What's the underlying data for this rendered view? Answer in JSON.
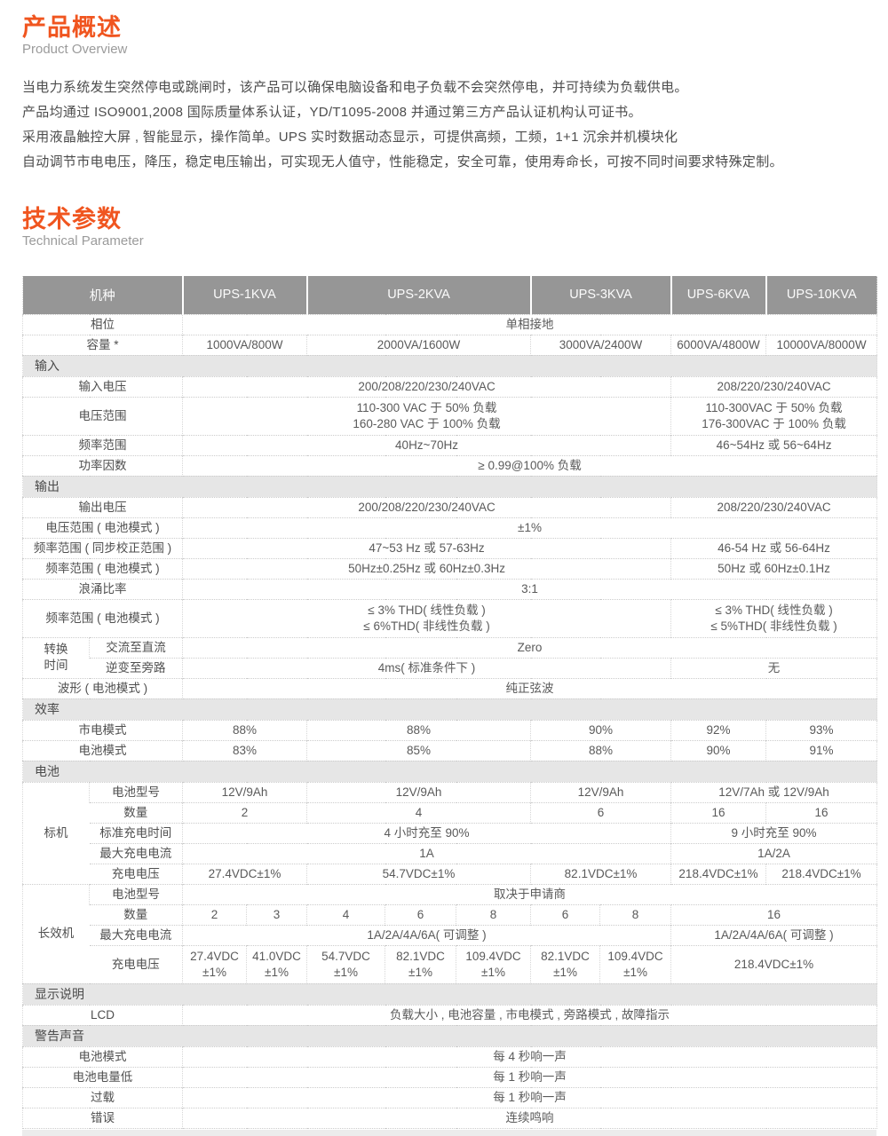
{
  "colors": {
    "accent": "#f0551f",
    "header_bg": "#969696",
    "section_bg": "#e6e6e6"
  },
  "overview": {
    "title": "产品概述",
    "subtitle": "Product Overview",
    "paragraphs": [
      "当电力系统发生突然停电或跳闸时，该产品可以确保电脑设备和电子负载不会突然停电，并可持续为负载供电。",
      "产品均通过 ISO9001,2008 国际质量体系认证，YD/T1095-2008 并通过第三方产品认证机构认可证书。",
      "采用液晶触控大屏 , 智能显示，操作简单。UPS 实时数据动态显示，可提供高频，工频，1+1 沉余并机模块化",
      "自动调节市电电压，降压，稳定电压输出，可实现无人值守，性能稳定，安全可靠，使用寿命长，可按不同时间要求特殊定制。"
    ]
  },
  "tech": {
    "title": "技术参数",
    "subtitle": "Technical Parameter"
  },
  "table": {
    "columns": [
      75,
      105,
      72,
      68,
      88,
      80,
      84,
      78,
      80,
      107,
      125
    ],
    "header": [
      {
        "t": "机种",
        "cs": 2
      },
      {
        "t": "UPS-1KVA",
        "cs": 2
      },
      {
        "t": "UPS-2KVA",
        "cs": 3
      },
      {
        "t": "UPS-3KVA",
        "cs": 2
      },
      {
        "t": "UPS-6KVA",
        "cs": 1
      },
      {
        "t": "UPS-10KVA",
        "cs": 1
      }
    ],
    "rows": [
      {
        "cells": [
          {
            "t": "相位",
            "cs": 2,
            "cls": "lab"
          },
          {
            "t": "单相接地",
            "cs": 9
          }
        ]
      },
      {
        "cells": [
          {
            "t": "容量 *",
            "cs": 2,
            "cls": "lab"
          },
          {
            "t": "1000VA/800W",
            "cs": 2
          },
          {
            "t": "2000VA/1600W",
            "cs": 3
          },
          {
            "t": "3000VA/2400W",
            "cs": 2
          },
          {
            "t": "6000VA/4800W"
          },
          {
            "t": "10000VA/8000W"
          }
        ]
      },
      {
        "section": "输入"
      },
      {
        "cells": [
          {
            "t": "输入电压",
            "cs": 2,
            "cls": "lab"
          },
          {
            "t": "200/208/220/230/240VAC",
            "cs": 7
          },
          {
            "t": "208/220/230/240VAC",
            "cs": 2
          }
        ]
      },
      {
        "cells": [
          {
            "t": "电压范围",
            "cs": 2,
            "cls": "lab"
          },
          {
            "t": [
              "110-300 VAC 于 50% 负载",
              "160-280 VAC 于 100% 负载"
            ],
            "cs": 7
          },
          {
            "t": [
              "110-300VAC 于 50% 负载",
              "176-300VAC 于 100% 负载"
            ],
            "cs": 2
          }
        ]
      },
      {
        "cells": [
          {
            "t": "频率范围",
            "cs": 2,
            "cls": "lab"
          },
          {
            "t": "40Hz~70Hz",
            "cs": 7
          },
          {
            "t": "46~54Hz 或 56~64Hz",
            "cs": 2
          }
        ]
      },
      {
        "cells": [
          {
            "t": "功率因数",
            "cs": 2,
            "cls": "lab"
          },
          {
            "t": "≥ 0.99@100% 负载",
            "cs": 9
          }
        ]
      },
      {
        "section": "输出"
      },
      {
        "cells": [
          {
            "t": "输出电压",
            "cs": 2,
            "cls": "lab"
          },
          {
            "t": "200/208/220/230/240VAC",
            "cs": 7
          },
          {
            "t": "208/220/230/240VAC",
            "cs": 2
          }
        ]
      },
      {
        "cells": [
          {
            "t": "电压范围 ( 电池模式 )",
            "cs": 2,
            "cls": "lab"
          },
          {
            "t": "±1%",
            "cs": 9
          }
        ]
      },
      {
        "cells": [
          {
            "t": "频率范围 ( 同步校正范围 )",
            "cs": 2,
            "cls": "lab"
          },
          {
            "t": "47~53 Hz 或 57-63Hz",
            "cs": 7
          },
          {
            "t": "46-54 Hz 或 56-64Hz",
            "cs": 2
          }
        ]
      },
      {
        "cells": [
          {
            "t": "频率范围 ( 电池模式 )",
            "cs": 2,
            "cls": "lab"
          },
          {
            "t": "50Hz±0.25Hz 或 60Hz±0.3Hz",
            "cs": 7
          },
          {
            "t": "50Hz 或 60Hz±0.1Hz",
            "cs": 2
          }
        ]
      },
      {
        "cells": [
          {
            "t": "浪涌比率",
            "cs": 2,
            "cls": "lab"
          },
          {
            "t": "3:1",
            "cs": 9
          }
        ]
      },
      {
        "cells": [
          {
            "t": "频率范围 ( 电池模式 )",
            "cs": 2,
            "cls": "lab"
          },
          {
            "t": [
              "≤ 3% THD( 线性负载 )",
              "≤ 6%THD( 非线性负载 )"
            ],
            "cs": 7
          },
          {
            "t": [
              "≤ 3% THD( 线性负载 )",
              "≤ 5%THD( 非线性负载 )"
            ],
            "cs": 2
          }
        ]
      },
      {
        "cells": [
          {
            "t": [
              "转换",
              "时间"
            ],
            "rs": 2,
            "cls": "lab"
          },
          {
            "t": "交流至直流",
            "cls": "lab"
          },
          {
            "t": "Zero",
            "cs": 9
          }
        ]
      },
      {
        "cells": [
          {
            "t": "逆变至旁路",
            "cls": "lab"
          },
          {
            "t": "4ms( 标准条件下 )",
            "cs": 7
          },
          {
            "t": "无",
            "cs": 2
          }
        ]
      },
      {
        "cells": [
          {
            "t": "波形 ( 电池模式 )",
            "cs": 2,
            "cls": "lab"
          },
          {
            "t": "纯正弦波",
            "cs": 9
          }
        ]
      },
      {
        "section": "效率"
      },
      {
        "cells": [
          {
            "t": "市电模式",
            "cs": 2,
            "cls": "lab"
          },
          {
            "t": "88%",
            "cs": 2
          },
          {
            "t": "88%",
            "cs": 3
          },
          {
            "t": "90%",
            "cs": 2
          },
          {
            "t": "92%"
          },
          {
            "t": "93%"
          }
        ]
      },
      {
        "cells": [
          {
            "t": "电池模式",
            "cs": 2,
            "cls": "lab"
          },
          {
            "t": "83%",
            "cs": 2
          },
          {
            "t": "85%",
            "cs": 3
          },
          {
            "t": "88%",
            "cs": 2
          },
          {
            "t": "90%"
          },
          {
            "t": "91%"
          }
        ]
      },
      {
        "section": "电池"
      },
      {
        "cells": [
          {
            "t": "标机",
            "rs": 5,
            "cls": "lab"
          },
          {
            "t": "电池型号",
            "cls": "lab"
          },
          {
            "t": "12V/9Ah",
            "cs": 2
          },
          {
            "t": "12V/9Ah",
            "cs": 3
          },
          {
            "t": "12V/9Ah",
            "cs": 2
          },
          {
            "t": "12V/7Ah 或 12V/9Ah",
            "cs": 2
          }
        ]
      },
      {
        "cells": [
          {
            "t": "数量",
            "cls": "lab"
          },
          {
            "t": "2",
            "cs": 2
          },
          {
            "t": "4",
            "cs": 3
          },
          {
            "t": "6",
            "cs": 2
          },
          {
            "t": "16"
          },
          {
            "t": "16"
          }
        ]
      },
      {
        "cells": [
          {
            "t": "标准充电时间",
            "cls": "lab"
          },
          {
            "t": "4 小时充至 90%",
            "cs": 7
          },
          {
            "t": "9 小时充至 90%",
            "cs": 2
          }
        ]
      },
      {
        "cells": [
          {
            "t": "最大充电电流",
            "cls": "lab"
          },
          {
            "t": "1A",
            "cs": 7
          },
          {
            "t": "1A/2A",
            "cs": 2
          }
        ]
      },
      {
        "cells": [
          {
            "t": "充电电压",
            "cls": "lab"
          },
          {
            "t": "27.4VDC±1%",
            "cs": 2
          },
          {
            "t": "54.7VDC±1%",
            "cs": 3
          },
          {
            "t": "82.1VDC±1%",
            "cs": 2
          },
          {
            "t": "218.4VDC±1%"
          },
          {
            "t": "218.4VDC±1%"
          }
        ]
      },
      {
        "cells": [
          {
            "t": "长效机",
            "rs": 4,
            "cls": "lab"
          },
          {
            "t": "电池型号",
            "cls": "lab"
          },
          {
            "t": "取决于申请商",
            "cs": 9
          }
        ]
      },
      {
        "cells": [
          {
            "t": "数量",
            "cls": "lab"
          },
          {
            "t": "2"
          },
          {
            "t": "3"
          },
          {
            "t": "4"
          },
          {
            "t": "6"
          },
          {
            "t": "8"
          },
          {
            "t": "6"
          },
          {
            "t": "8"
          },
          {
            "t": "16",
            "cs": 2
          }
        ]
      },
      {
        "cells": [
          {
            "t": "最大充电电流",
            "cls": "lab"
          },
          {
            "t": "1A/2A/4A/6A( 可调整 )",
            "cs": 7
          },
          {
            "t": "1A/2A/4A/6A( 可调整 )",
            "cs": 2
          }
        ]
      },
      {
        "cells": [
          {
            "t": "充电电压",
            "cls": "lab"
          },
          {
            "t": [
              "27.4VDC",
              "±1%"
            ]
          },
          {
            "t": [
              "41.0VDC",
              "±1%"
            ]
          },
          {
            "t": [
              "54.7VDC",
              "±1%"
            ]
          },
          {
            "t": [
              "82.1VDC",
              "±1%"
            ]
          },
          {
            "t": [
              "109.4VDC",
              "±1%"
            ]
          },
          {
            "t": [
              "82.1VDC",
              "±1%"
            ]
          },
          {
            "t": [
              "109.4VDC",
              "±1%"
            ]
          },
          {
            "t": "218.4VDC±1%",
            "cs": 2
          }
        ]
      },
      {
        "section": "显示说明"
      },
      {
        "cells": [
          {
            "t": "LCD",
            "cs": 2,
            "cls": "lab"
          },
          {
            "t": "负载大小 , 电池容量 , 市电模式 , 旁路模式 , 故障指示",
            "cs": 9
          }
        ]
      },
      {
        "section": "警告声音"
      },
      {
        "cells": [
          {
            "t": "电池模式",
            "cs": 2,
            "cls": "lab"
          },
          {
            "t": "每 4 秒响一声",
            "cs": 9
          }
        ]
      },
      {
        "cells": [
          {
            "t": "电池电量低",
            "cs": 2,
            "cls": "lab"
          },
          {
            "t": "每 1 秒响一声",
            "cs": 9
          }
        ]
      },
      {
        "cells": [
          {
            "t": "过载",
            "cs": 2,
            "cls": "lab"
          },
          {
            "t": "每 1 秒响一声",
            "cs": 9
          }
        ]
      },
      {
        "cells": [
          {
            "t": "错误",
            "cs": 2,
            "cls": "lab"
          },
          {
            "t": "连续鸣响",
            "cs": 9
          }
        ]
      }
    ]
  }
}
